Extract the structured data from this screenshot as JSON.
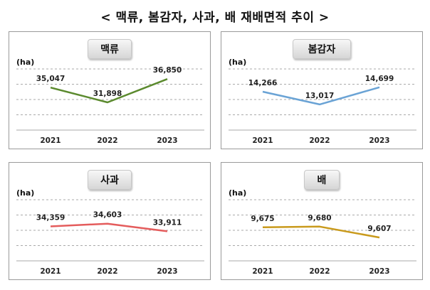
{
  "title": "< 맥류, 봄감자, 사과, 배  재배면적  추이 >",
  "chart_data": [
    {
      "type": "line",
      "title": "맥류",
      "unit": "(ha)",
      "categories": [
        "2021",
        "2022",
        "2023"
      ],
      "values": [
        35047,
        31898,
        36850
      ],
      "labels": [
        "35,047",
        "31,898",
        "36,850"
      ],
      "color": "#5b8a2e",
      "ylim": [
        26000,
        39000
      ],
      "grid": true
    },
    {
      "type": "line",
      "title": "봄감자",
      "unit": "(ha)",
      "categories": [
        "2021",
        "2022",
        "2023"
      ],
      "values": [
        14266,
        13017,
        14699
      ],
      "labels": [
        "14,266",
        "13,017",
        "14,699"
      ],
      "color": "#6aa3d5",
      "ylim": [
        10500,
        16500
      ],
      "grid": true
    },
    {
      "type": "line",
      "title": "사과",
      "unit": "(ha)",
      "categories": [
        "2021",
        "2022",
        "2023"
      ],
      "values": [
        34359,
        34603,
        33911
      ],
      "labels": [
        "34,359",
        "34,603",
        "33,911"
      ],
      "color": "#e45c5c",
      "ylim": [
        31200,
        36800
      ],
      "grid": true
    },
    {
      "type": "line",
      "title": "배",
      "unit": "(ha)",
      "categories": [
        "2021",
        "2022",
        "2023"
      ],
      "values": [
        9675,
        9680,
        9607
      ],
      "labels": [
        "9,675",
        "9,680",
        "9,607"
      ],
      "color": "#c99a1c",
      "ylim": [
        9450,
        9860
      ],
      "grid": true
    }
  ]
}
